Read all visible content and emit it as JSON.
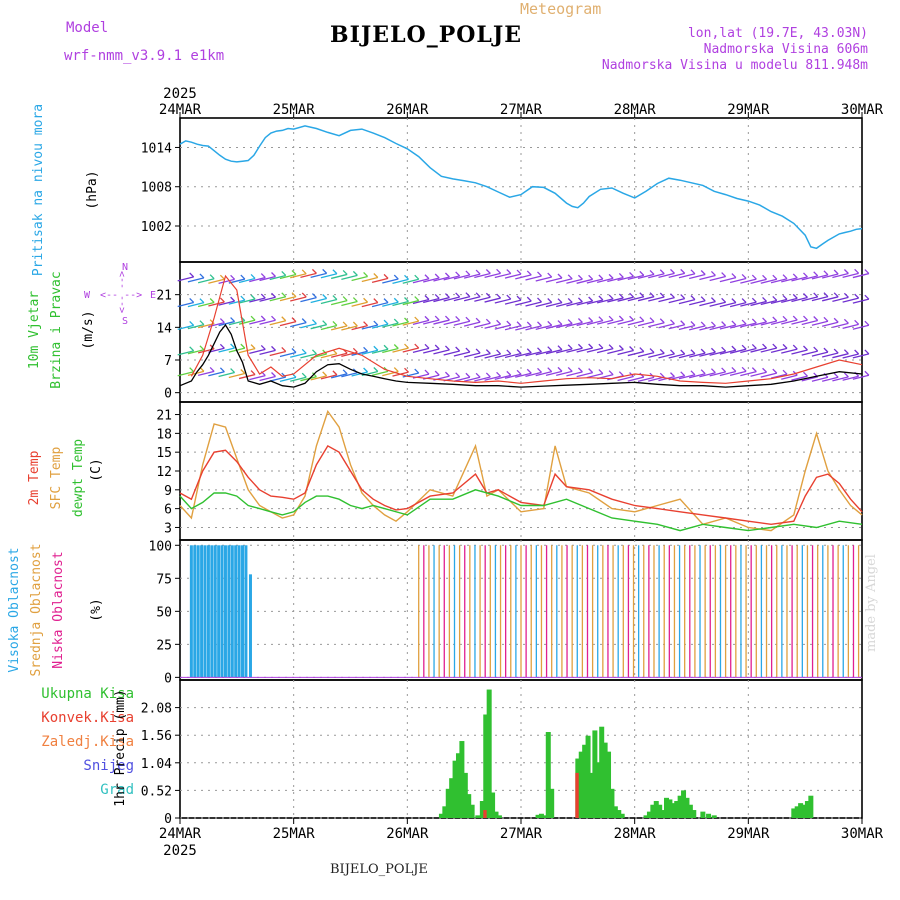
{
  "header": {
    "model_label": "Model",
    "model_value": "wrf-nmm_v3.9.1 e1km",
    "title": "BIJELO_POLJE",
    "meteogram": "Meteogram",
    "lonlat": "lon,lat (19.7E, 43.03N)",
    "altitude": "Nadmorska Visina 606m",
    "altitude_model": "Nadmorska Visina u modelu 811.948m"
  },
  "footer": {
    "station": "BIJELO_POLJE",
    "credit": "made by Angel"
  },
  "colors": {
    "pressure": "#2aa7e6",
    "temp2m": "#e84030",
    "sfc": "#e0a040",
    "dewpt": "#30c030",
    "precip_total": "#30c030",
    "precip_conv": "#e84030",
    "cloud_high": "#2aa7e6",
    "cloud_mid": "#e0a040",
    "cloud_low": "#e02090"
  },
  "chart_data": [
    {
      "type": "line",
      "panel": "pressure",
      "ylabel_title": "Pritisak na nivou mora",
      "ylabel_unit": "(hPa)",
      "year": "2025",
      "x_ticks": [
        "24MAR",
        "25MAR",
        "26MAR",
        "27MAR",
        "28MAR",
        "29MAR",
        "30MAR"
      ],
      "y_ticks": [
        1002,
        1008,
        1014
      ],
      "ylim": [
        996.5,
        1018.5
      ],
      "grid": true,
      "series": [
        {
          "x": [
            0,
            0.05,
            0.1,
            0.15,
            0.2,
            0.25,
            0.3,
            0.35,
            0.4,
            0.45,
            0.5,
            0.55,
            0.6,
            0.65,
            0.7,
            0.75,
            0.8,
            0.85,
            0.9,
            0.95,
            1.0,
            1.1,
            1.2,
            1.3,
            1.4,
            1.5,
            1.6,
            1.7,
            1.8,
            1.9,
            2.0,
            2.1,
            2.2,
            2.3,
            2.4,
            2.5,
            2.6,
            2.7,
            2.8,
            2.9,
            3.0,
            3.1,
            3.2,
            3.3,
            3.4,
            3.45,
            3.5,
            3.55,
            3.6,
            3.7,
            3.8,
            3.9,
            4.0,
            4.1,
            4.2,
            4.3,
            4.4,
            4.5,
            4.6,
            4.7,
            4.8,
            4.9,
            5.0,
            5.1,
            5.2,
            5.3,
            5.4,
            5.5,
            5.55,
            5.6,
            5.65,
            5.7,
            5.75,
            5.8,
            5.85,
            5.9,
            5.95,
            6.0
          ],
          "values": [
            1014.5,
            1015.0,
            1014.8,
            1014.5,
            1014.3,
            1014.2,
            1013.5,
            1012.8,
            1012.2,
            1011.9,
            1011.8,
            1011.9,
            1012.0,
            1012.8,
            1014.2,
            1015.5,
            1016.2,
            1016.5,
            1016.6,
            1016.9,
            1016.8,
            1017.3,
            1016.9,
            1016.3,
            1015.8,
            1016.6,
            1016.8,
            1016.2,
            1015.5,
            1014.6,
            1013.8,
            1012.6,
            1010.9,
            1009.6,
            1009.2,
            1008.9,
            1008.6,
            1008.0,
            1007.2,
            1006.4,
            1006.8,
            1008.0,
            1007.9,
            1007.0,
            1005.5,
            1005.0,
            1004.8,
            1005.5,
            1006.5,
            1007.6,
            1007.8,
            1007.0,
            1006.3,
            1007.3,
            1008.5,
            1009.3,
            1009.0,
            1008.6,
            1008.2,
            1007.3,
            1006.8,
            1006.2,
            1005.8,
            1005.2,
            1004.2,
            1003.5,
            1002.4,
            1000.6,
            998.8,
            998.6,
            999.2,
            999.8,
            1000.3,
            1000.8,
            1001.0,
            1001.2,
            1001.5,
            1001.6
          ]
        }
      ]
    },
    {
      "type": "line",
      "panel": "wind",
      "ylabel_title": "10m Vjetar",
      "ylabel_title2": "Brzina i Pravac",
      "ylabel_unit": "(m/s)",
      "compass": {
        "n": "N",
        "s": "S",
        "w": "W",
        "e": "E",
        "arrow": "<-- -->"
      },
      "y_ticks": [
        0,
        7,
        14,
        21
      ],
      "ylim": [
        -2,
        28
      ],
      "grid": true,
      "series": [
        {
          "name": "speed",
          "x": [
            0,
            0.1,
            0.15,
            0.2,
            0.25,
            0.3,
            0.35,
            0.4,
            0.45,
            0.5,
            0.55,
            0.6,
            0.7,
            0.8,
            0.9,
            1.0,
            1.1,
            1.2,
            1.3,
            1.4,
            1.5,
            1.6,
            1.7,
            1.8,
            1.9,
            2.0,
            2.2,
            2.4,
            2.6,
            2.8,
            3.0,
            3.2,
            3.4,
            3.6,
            3.8,
            4.0,
            4.2,
            4.4,
            4.6,
            4.8,
            5.0,
            5.2,
            5.4,
            5.6,
            5.8,
            6.0
          ],
          "values": [
            1.5,
            2.5,
            4.5,
            6.0,
            8.0,
            10.5,
            13.0,
            14.5,
            12.5,
            9.0,
            6.5,
            2.5,
            1.8,
            2.5,
            1.5,
            1.2,
            2.0,
            4.5,
            6.0,
            6.2,
            5.0,
            4.0,
            3.5,
            3.0,
            2.5,
            2.2,
            2.0,
            1.8,
            1.5,
            1.5,
            1.2,
            1.4,
            1.6,
            1.8,
            2.0,
            2.2,
            1.8,
            1.5,
            1.5,
            1.2,
            1.5,
            1.8,
            2.5,
            3.5,
            4.5,
            4.0
          ]
        },
        {
          "name": "gust",
          "x": [
            0.1,
            0.2,
            0.3,
            0.4,
            0.5,
            0.6,
            0.7,
            0.8,
            0.9,
            1.0,
            1.2,
            1.4,
            1.6,
            1.8,
            2.0,
            2.2,
            2.4,
            2.6,
            2.8,
            3.0,
            3.2,
            3.4,
            3.6,
            3.8,
            4.0,
            4.2,
            4.4,
            4.6,
            4.8,
            5.0,
            5.2,
            5.4,
            5.6,
            5.8,
            6.0
          ],
          "values": [
            3.5,
            8.0,
            16.0,
            25.0,
            22.0,
            8.0,
            4.0,
            5.5,
            3.5,
            4.0,
            8.0,
            9.5,
            8.0,
            5.0,
            3.5,
            3.0,
            2.5,
            2.2,
            2.5,
            2.0,
            2.5,
            3.0,
            3.2,
            3.0,
            4.0,
            3.5,
            2.5,
            2.2,
            2.0,
            2.5,
            3.0,
            4.0,
            5.5,
            7.0,
            6.0
          ]
        }
      ]
    },
    {
      "type": "line",
      "panel": "temperature",
      "ylabel_title": "2m Temp",
      "ylabel_title2": "SFC Temp",
      "ylabel_title3": "dewpt Temp",
      "ylabel_unit": "(C)",
      "y_ticks": [
        3,
        6,
        9,
        12,
        15,
        18,
        21
      ],
      "ylim": [
        1,
        23
      ],
      "grid": true,
      "series": [
        {
          "name": "2m Temp",
          "x": [
            0,
            0.1,
            0.2,
            0.3,
            0.4,
            0.5,
            0.6,
            0.7,
            0.8,
            0.9,
            1.0,
            1.1,
            1.2,
            1.3,
            1.4,
            1.5,
            1.6,
            1.7,
            1.8,
            1.9,
            2.0,
            2.2,
            2.4,
            2.6,
            2.7,
            2.8,
            3.0,
            3.2,
            3.3,
            3.4,
            3.6,
            3.8,
            4.0,
            4.2,
            4.4,
            4.6,
            4.8,
            5.0,
            5.2,
            5.4,
            5.5,
            5.6,
            5.7,
            5.8,
            5.9,
            6.0
          ],
          "values": [
            8.5,
            7.5,
            12.0,
            15.0,
            15.3,
            13.5,
            11.0,
            9.0,
            8.0,
            7.8,
            7.5,
            8.5,
            13.0,
            16.0,
            15.0,
            12.0,
            9.0,
            7.5,
            6.5,
            5.8,
            6.0,
            8.0,
            8.5,
            11.5,
            8.5,
            9.0,
            7.0,
            6.5,
            11.5,
            9.5,
            9.0,
            7.5,
            6.5,
            6.0,
            5.5,
            5.0,
            4.5,
            4.0,
            3.5,
            4.0,
            8.0,
            11.0,
            11.5,
            10.0,
            7.5,
            5.5
          ]
        },
        {
          "name": "SFC Temp",
          "x": [
            0,
            0.1,
            0.2,
            0.3,
            0.4,
            0.5,
            0.6,
            0.7,
            0.8,
            0.9,
            1.0,
            1.1,
            1.2,
            1.3,
            1.4,
            1.5,
            1.6,
            1.7,
            1.8,
            1.9,
            2.0,
            2.2,
            2.4,
            2.6,
            2.7,
            2.8,
            3.0,
            3.2,
            3.3,
            3.4,
            3.6,
            3.8,
            4.0,
            4.2,
            4.4,
            4.6,
            4.8,
            5.0,
            5.2,
            5.4,
            5.5,
            5.6,
            5.7,
            5.8,
            5.9,
            6.0
          ],
          "values": [
            6.5,
            4.5,
            13.0,
            19.5,
            19.0,
            14.0,
            9.0,
            6.5,
            5.5,
            4.5,
            5.0,
            8.0,
            16.0,
            21.5,
            19.0,
            13.0,
            8.5,
            6.5,
            5.0,
            4.0,
            5.5,
            9.0,
            8.0,
            16.0,
            8.0,
            9.0,
            5.5,
            6.0,
            16.0,
            9.5,
            8.5,
            6.0,
            5.5,
            6.5,
            7.5,
            3.5,
            4.5,
            3.0,
            2.5,
            5.0,
            12.0,
            18.0,
            12.0,
            9.0,
            6.5,
            5.0
          ]
        },
        {
          "name": "dewpt Temp",
          "x": [
            0,
            0.1,
            0.2,
            0.3,
            0.4,
            0.5,
            0.6,
            0.7,
            0.8,
            0.9,
            1.0,
            1.1,
            1.2,
            1.3,
            1.4,
            1.5,
            1.6,
            1.7,
            1.8,
            2.0,
            2.2,
            2.4,
            2.6,
            2.8,
            3.0,
            3.2,
            3.4,
            3.6,
            3.8,
            4.0,
            4.2,
            4.4,
            4.6,
            4.8,
            5.0,
            5.2,
            5.4,
            5.6,
            5.8,
            6.0
          ],
          "values": [
            8.0,
            6.0,
            7.0,
            8.5,
            8.5,
            8.0,
            6.5,
            6.0,
            5.5,
            5.0,
            5.5,
            7.0,
            8.0,
            8.0,
            7.5,
            6.5,
            6.0,
            6.5,
            6.0,
            5.0,
            7.5,
            7.5,
            9.0,
            8.0,
            6.5,
            6.5,
            7.5,
            6.0,
            4.5,
            4.0,
            3.5,
            2.5,
            3.5,
            3.0,
            2.5,
            3.0,
            3.5,
            3.0,
            4.0,
            3.5
          ]
        }
      ]
    },
    {
      "type": "bar",
      "panel": "cloud",
      "ylabel_title": "Visoka Oblacnost",
      "ylabel_title2": "Srednja Oblacnost",
      "ylabel_title3": "Niska Oblacnost",
      "ylabel_unit": "(%)",
      "y_ticks": [
        0,
        25,
        50,
        75,
        100
      ],
      "ylim": [
        -2,
        104
      ],
      "grid": true,
      "high_cloud": {
        "x": [
          0.1,
          0.13,
          0.16,
          0.19,
          0.22,
          0.25,
          0.28,
          0.31,
          0.34,
          0.37,
          0.4,
          0.43,
          0.46,
          0.49,
          0.52,
          0.55,
          0.58,
          0.62
        ],
        "values": [
          100,
          100,
          100,
          100,
          100,
          100,
          100,
          100,
          100,
          100,
          100,
          100,
          100,
          100,
          100,
          100,
          100,
          78
        ]
      },
      "mid_cloud_band": {
        "from": 2.1,
        "to": 6.0,
        "step": 0.045,
        "value": 100
      }
    },
    {
      "type": "bar",
      "panel": "precip",
      "ylabel_unit": "1hr Precip (mm)",
      "legend": [
        "Ukupna Kisa",
        "Konvek.Kisa",
        "Zaledj.Kisa",
        "Snijeg",
        "Grad"
      ],
      "y_ticks": [
        "0",
        "0.52",
        "1.04",
        "1.56",
        "2.08"
      ],
      "ylim": [
        0,
        2.6
      ],
      "grid": true,
      "x": [
        2.3,
        2.33,
        2.36,
        2.39,
        2.42,
        2.45,
        2.48,
        2.51,
        2.54,
        2.57,
        2.62,
        2.66,
        2.69,
        2.72,
        2.75,
        2.78,
        2.81,
        3.15,
        3.18,
        3.21,
        3.24,
        3.27,
        3.5,
        3.53,
        3.56,
        3.59,
        3.62,
        3.65,
        3.68,
        3.71,
        3.74,
        3.77,
        3.8,
        3.83,
        3.86,
        3.89,
        4.1,
        4.13,
        4.16,
        4.19,
        4.22,
        4.25,
        4.28,
        4.31,
        4.34,
        4.37,
        4.4,
        4.43,
        4.46,
        4.49,
        4.52,
        4.6,
        4.65,
        4.7,
        5.4,
        5.43,
        5.46,
        5.49,
        5.52,
        5.55
      ],
      "values": [
        0.08,
        0.22,
        0.55,
        0.75,
        1.08,
        1.22,
        1.45,
        0.85,
        0.45,
        0.25,
        0.05,
        0.32,
        1.95,
        2.42,
        0.48,
        0.12,
        0.05,
        0.06,
        0.08,
        0.05,
        1.62,
        0.55,
        1.12,
        1.25,
        1.38,
        1.55,
        0.85,
        1.65,
        1.05,
        1.72,
        1.42,
        1.25,
        0.55,
        0.22,
        0.15,
        0.08,
        0.05,
        0.12,
        0.25,
        0.32,
        0.25,
        0.15,
        0.38,
        0.35,
        0.28,
        0.32,
        0.42,
        0.52,
        0.38,
        0.25,
        0.15,
        0.12,
        0.08,
        0.05,
        0.18,
        0.22,
        0.28,
        0.25,
        0.32,
        0.42
      ],
      "conv_values": [
        0,
        0,
        0,
        0,
        0,
        0,
        0,
        0,
        0,
        0,
        0,
        0,
        0.15,
        0,
        0,
        0,
        0,
        0,
        0,
        0,
        0,
        0,
        0.85,
        0,
        0,
        0,
        0,
        0,
        0,
        0,
        0,
        0,
        0,
        0,
        0,
        0,
        0,
        0,
        0,
        0,
        0,
        0,
        0,
        0,
        0,
        0,
        0,
        0,
        0,
        0,
        0,
        0,
        0,
        0,
        0,
        0,
        0,
        0,
        0,
        0
      ]
    }
  ]
}
